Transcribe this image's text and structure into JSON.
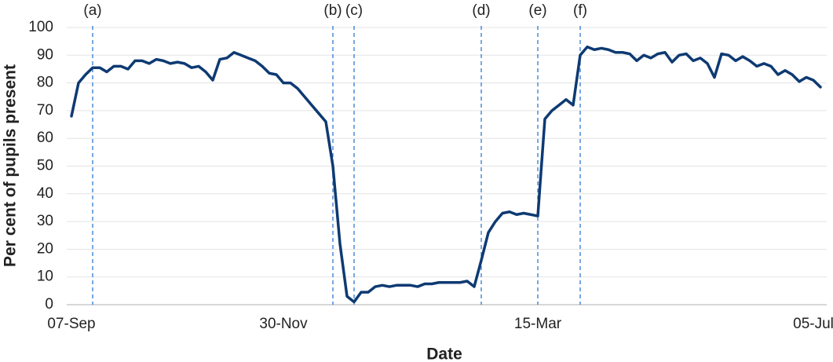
{
  "chart_data": {
    "type": "line",
    "x_label": "Date",
    "y_label": "Per cent of pupils present",
    "categories": [
      "07-Sep",
      null,
      null,
      null,
      null,
      null,
      null,
      null,
      null,
      null,
      null,
      null,
      null,
      null,
      null,
      null,
      null,
      null,
      null,
      null,
      null,
      null,
      null,
      null,
      null,
      null,
      null,
      null,
      null,
      null,
      "30-Nov",
      null,
      null,
      null,
      null,
      null,
      null,
      null,
      null,
      null,
      null,
      null,
      null,
      null,
      null,
      null,
      null,
      null,
      null,
      null,
      null,
      null,
      null,
      null,
      null,
      null,
      null,
      null,
      null,
      null,
      null,
      null,
      null,
      null,
      null,
      null,
      "15-Mar",
      null,
      null,
      null,
      null,
      null,
      null,
      null,
      null,
      null,
      null,
      null,
      null,
      null,
      null,
      null,
      null,
      null,
      null,
      null,
      null,
      null,
      null,
      null,
      null,
      null,
      null,
      null,
      null,
      null,
      null,
      null,
      null,
      null,
      null,
      null,
      null,
      null,
      null,
      "05-Jul",
      null
    ],
    "annotations": [
      null,
      null,
      null,
      "(a)",
      null,
      null,
      null,
      null,
      null,
      null,
      null,
      null,
      null,
      null,
      null,
      null,
      null,
      null,
      null,
      null,
      null,
      null,
      null,
      null,
      null,
      null,
      null,
      null,
      null,
      null,
      null,
      null,
      null,
      null,
      null,
      null,
      null,
      "(b)",
      null,
      null,
      "(c)",
      null,
      null,
      null,
      null,
      null,
      null,
      null,
      null,
      null,
      null,
      null,
      null,
      null,
      null,
      null,
      null,
      null,
      "(d)",
      null,
      null,
      null,
      null,
      null,
      null,
      null,
      "(e)",
      null,
      null,
      null,
      null,
      null,
      "(f)",
      null,
      null,
      null,
      null,
      null,
      null,
      null,
      null,
      null,
      null,
      null,
      null,
      null,
      null,
      null,
      null,
      null,
      null,
      null,
      null,
      null,
      null,
      null,
      null,
      null,
      null,
      null,
      null,
      null,
      null,
      null,
      null,
      null,
      null
    ],
    "series": [
      {
        "color": "#0e3a72",
        "values": [
          68,
          80,
          83,
          85.5,
          85.5,
          84,
          86,
          86,
          85,
          88,
          88,
          87,
          88.5,
          88,
          87,
          87.5,
          87,
          85.5,
          86,
          84,
          81,
          88.5,
          89,
          91,
          90,
          89,
          88,
          86,
          83.5,
          83,
          80,
          80,
          78,
          75,
          72,
          69,
          66,
          50,
          22,
          3,
          1,
          4.5,
          4.5,
          6.5,
          7,
          6.5,
          7,
          7,
          7,
          6.5,
          7.5,
          7.5,
          8,
          8,
          8,
          8,
          8.5,
          6.5,
          16,
          26,
          30,
          33,
          33.5,
          32.5,
          33,
          32.5,
          32,
          67,
          70,
          72,
          74,
          72,
          90,
          93,
          92,
          92.5,
          92,
          91,
          91,
          90.5,
          88,
          90,
          89,
          90.5,
          91,
          87.5,
          90,
          90.5,
          88,
          89,
          87,
          82,
          90.5,
          90,
          88,
          89.5,
          88,
          86,
          87,
          86,
          83,
          84.5,
          83,
          80.5,
          82,
          81,
          78.5
        ]
      }
    ],
    "annotation_color": "#2f7ad3",
    "ylim": [
      0,
      100
    ],
    "yticks": [
      0,
      10,
      20,
      30,
      40,
      50,
      60,
      70,
      80,
      90,
      100
    ],
    "grid": true
  }
}
